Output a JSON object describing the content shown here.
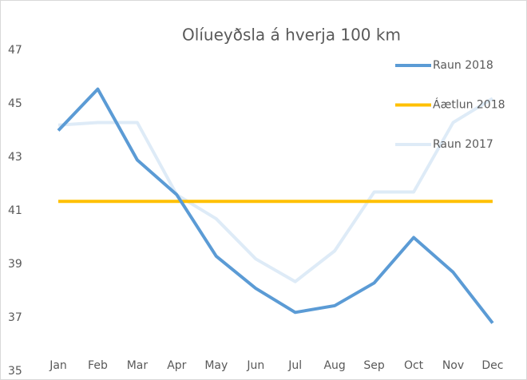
{
  "chart_data": {
    "type": "line",
    "title": "Olíueyðsla á hverja 100 km",
    "categories": [
      "Jan",
      "Feb",
      "Mar",
      "Apr",
      "May",
      "Jun",
      "Jul",
      "Aug",
      "Sep",
      "Oct",
      "Nov",
      "Dec"
    ],
    "series": [
      {
        "name": "Raun 2018",
        "color": "#5b9bd5",
        "values": [
          44.0,
          45.55,
          42.9,
          41.6,
          39.3,
          38.1,
          37.2,
          37.45,
          38.3,
          40.0,
          38.7,
          36.8
        ]
      },
      {
        "name": "Áætlun 2018",
        "color": "#ffc000",
        "values": [
          41.35,
          41.35,
          41.35,
          41.35,
          41.35,
          41.35,
          41.35,
          41.35,
          41.35,
          41.35,
          41.35,
          41.35
        ]
      },
      {
        "name": "Raun 2017",
        "color": "#deebf7",
        "values": [
          44.2,
          44.3,
          44.3,
          41.6,
          40.7,
          39.2,
          38.35,
          39.5,
          41.7,
          41.7,
          44.3,
          45.2
        ]
      }
    ],
    "ylim": [
      35,
      47
    ],
    "yticks": [
      35,
      37,
      39,
      41,
      43,
      45,
      47
    ],
    "grid": false,
    "legend": "top-right"
  }
}
